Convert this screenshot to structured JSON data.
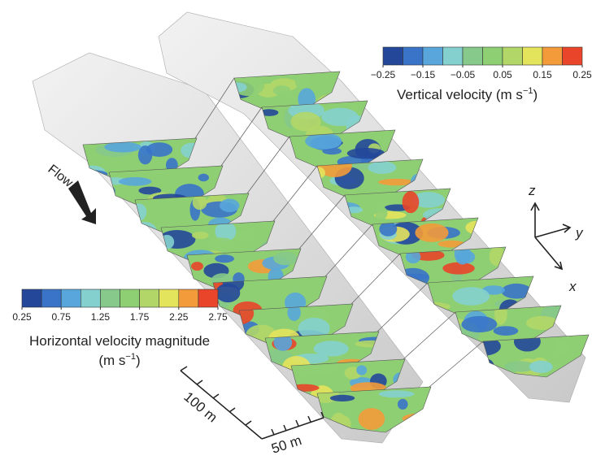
{
  "vertical_colorbar": {
    "title": "Vertical velocity (m s",
    "title_exponent": "−1",
    "title_end": ")",
    "lim": [
      -0.25,
      0.25
    ],
    "ticks": [
      {
        "value": -0.25,
        "label": "−0.25"
      },
      {
        "value": -0.15,
        "label": "−0.15"
      },
      {
        "value": -0.05,
        "label": "−0.05"
      },
      0.05,
      0.15,
      0.25
    ],
    "colors": [
      "#24479a",
      "#3a74c8",
      "#58a6dc",
      "#84d0cf",
      "#86c98a",
      "#8fcf74",
      "#b3d668",
      "#e4e35c",
      "#f39a3a",
      "#e8452a"
    ]
  },
  "horizontal_colorbar": {
    "title": "Horizontal velocity magnitude",
    "unit": "(m s",
    "unit_exponent": "−1",
    "unit_end": ")",
    "lim": [
      0.25,
      2.75
    ],
    "ticks": [
      0.25,
      0.75,
      1.25,
      1.75,
      2.25,
      2.75
    ],
    "colors": [
      "#24479a",
      "#3a74c8",
      "#58a6dc",
      "#84d0cf",
      "#86c98a",
      "#8fcf74",
      "#b3d668",
      "#e4e35c",
      "#f39a3a",
      "#e8452a"
    ]
  },
  "flow_label": "Flow",
  "axes": {
    "z": "z",
    "y": "y",
    "x": "x"
  },
  "scale": {
    "along": "100 m",
    "across": "50 m"
  }
}
